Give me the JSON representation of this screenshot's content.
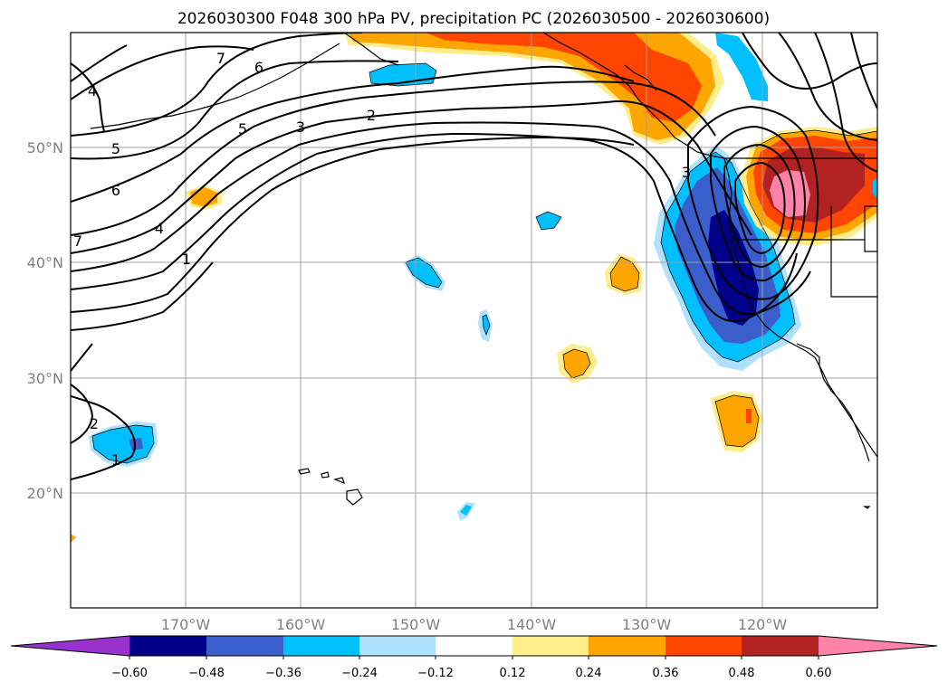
{
  "title": "2026030300 F048 300 hPa PV, precipitation PC (2026030500 - 2026030600)",
  "lat_labels": [
    "50°N",
    "40°N",
    "30°N",
    "20°N"
  ],
  "lon_labels": [
    "170°W",
    "160°W",
    "150°W",
    "140°W",
    "130°W",
    "120°W"
  ],
  "colorbar": {
    "ticks": [
      "−0.60",
      "−0.48",
      "−0.36",
      "−0.24",
      "−0.12",
      "0.12",
      "0.24",
      "0.36",
      "0.48",
      "0.60"
    ],
    "colors": [
      "#9932cc",
      "#00008b",
      "#3a5fcd",
      "#00bfff",
      "#b0e2ff",
      "#ffffff",
      "#ffec8b",
      "#ffa500",
      "#ff4500",
      "#b22222",
      "#ff82ab"
    ]
  },
  "contour_labels": [
    "7",
    "6",
    "4",
    "5",
    "3",
    "2",
    "5",
    "6",
    "4",
    "1",
    "7",
    "3",
    "2",
    "1"
  ]
}
